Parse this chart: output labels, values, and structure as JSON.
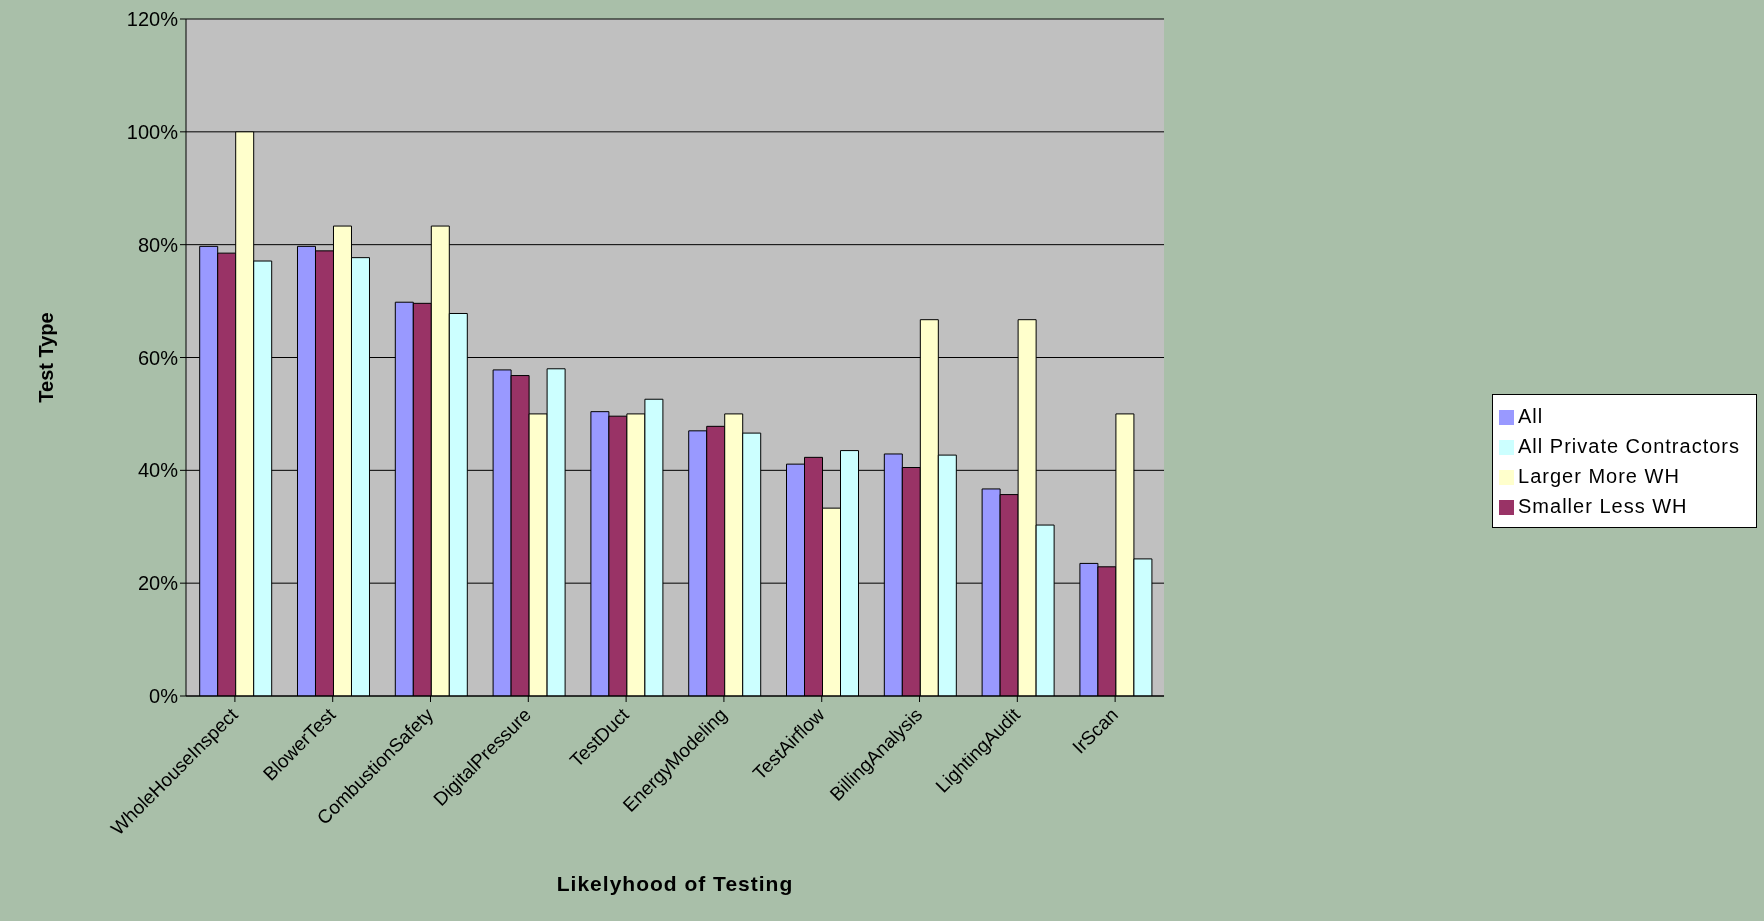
{
  "chart_data": {
    "type": "bar",
    "xlabel": "Likelyhood of Testing",
    "ylabel": "Test Type",
    "categories": [
      "WholeHouseInspect",
      "BlowerTest",
      "CombustionSafety",
      "DigitalPressure",
      "TestDuct",
      "EnergyModeling",
      "TestAirflow",
      "BillingAnalysis",
      "LightingAudit",
      "IrScan"
    ],
    "series": [
      {
        "name": "All",
        "color": "#9999ff",
        "values": [
          79.7,
          79.7,
          69.8,
          57.8,
          50.4,
          47.0,
          41.1,
          42.9,
          36.7,
          23.5
        ]
      },
      {
        "name": "Smaller Less WH",
        "color": "#993366",
        "values": [
          78.5,
          78.9,
          69.6,
          56.8,
          49.6,
          47.8,
          42.3,
          40.5,
          35.7,
          22.9
        ]
      },
      {
        "name": "Larger More WH",
        "color": "#ffffcc",
        "values": [
          100,
          83.3,
          83.3,
          50,
          50,
          50,
          33.3,
          66.7,
          66.7,
          50
        ]
      },
      {
        "name": "All Private Contractors",
        "color": "#ccffff",
        "values": [
          77.1,
          77.7,
          67.8,
          58.0,
          52.6,
          46.6,
          43.5,
          42.7,
          30.3,
          24.3
        ]
      }
    ],
    "ylim": [
      0,
      120
    ],
    "yticks": [
      {
        "value": 0,
        "label": "0%"
      },
      {
        "value": 20,
        "label": "20%"
      },
      {
        "value": 40,
        "label": "40%"
      },
      {
        "value": 60,
        "label": "60%"
      },
      {
        "value": 80,
        "label": "80%"
      },
      {
        "value": 100,
        "label": "100%"
      },
      {
        "value": 120,
        "label": "120%"
      }
    ],
    "grid": "y",
    "legend": "right"
  }
}
